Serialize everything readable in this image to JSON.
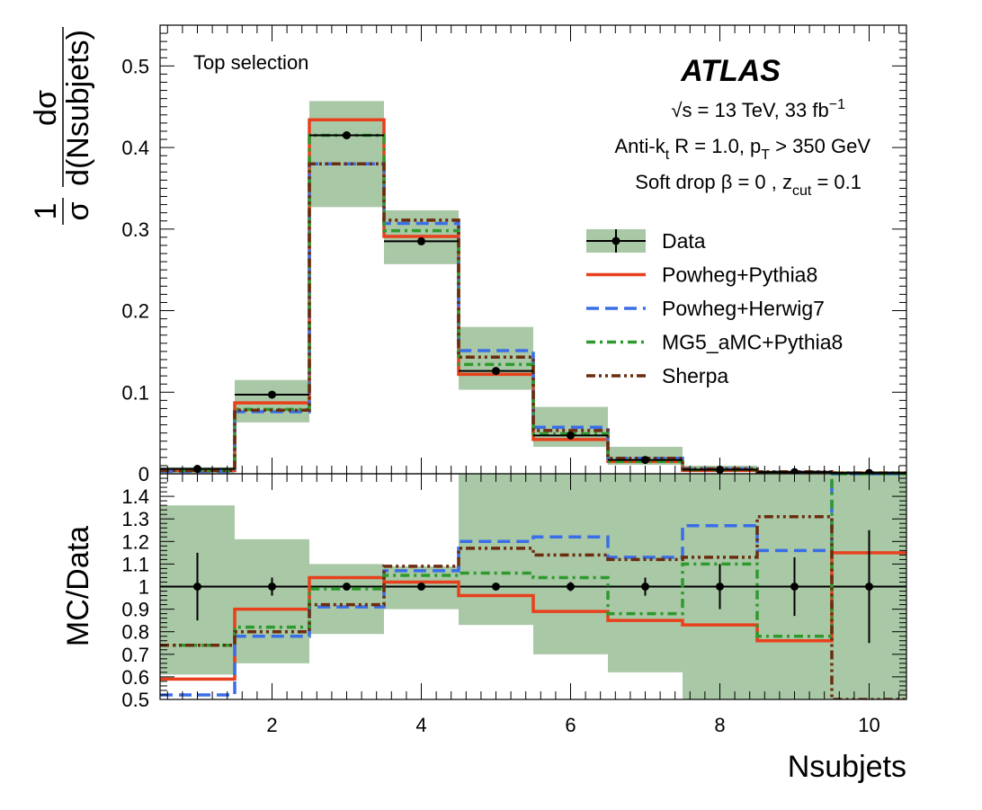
{
  "chart_data": [
    {
      "type": "line",
      "panel": "main",
      "ylabel_fraction": {
        "numerator": "1",
        "denominator": "σ",
        "derivative_num": "dσ",
        "derivative_den": "d(Nsubjets)"
      },
      "ylim": [
        0,
        0.55
      ],
      "yticks": [
        0,
        0.1,
        0.2,
        0.3,
        0.4,
        0.5
      ],
      "y_ticklabels": [
        "0",
        "0.1",
        "0.2",
        "0.3",
        "0.4",
        "0.5"
      ],
      "xlim": [
        0.5,
        10.5
      ],
      "x": [
        1,
        2,
        3,
        4,
        5,
        6,
        7,
        8,
        9,
        10
      ],
      "series": [
        {
          "name": "Data",
          "color": "#000000",
          "style": "points",
          "values": [
            0.006,
            0.097,
            0.415,
            0.285,
            0.126,
            0.047,
            0.017,
            0.005,
            0.002,
            0.001
          ],
          "band_low": [
            0.001,
            0.063,
            0.327,
            0.257,
            0.103,
            0.033,
            0.011,
            0.003,
            0.001,
            0.0
          ],
          "band_high": [
            0.008,
            0.115,
            0.457,
            0.323,
            0.18,
            0.082,
            0.033,
            0.01,
            0.004,
            0.002
          ],
          "band_color": "#a9c8a6"
        },
        {
          "name": "Powheg+Pythia8",
          "color": "#e8401c",
          "style": "solid",
          "values": [
            0.004,
            0.087,
            0.434,
            0.291,
            0.122,
            0.042,
            0.015,
            0.004,
            0.0015,
            0.001
          ]
        },
        {
          "name": "Powheg+Herwig7",
          "color": "#3a6ee8",
          "style": "dashed",
          "values": [
            0.003,
            0.076,
            0.38,
            0.307,
            0.151,
            0.057,
            0.019,
            0.006,
            0.002,
            0.001
          ]
        },
        {
          "name": "MG5_aMC+Pythia8",
          "color": "#2e9a2e",
          "style": "dashdot",
          "values": [
            0.004,
            0.079,
            0.415,
            0.298,
            0.134,
            0.049,
            0.015,
            0.005,
            0.0015,
            0.001
          ]
        },
        {
          "name": "Sherpa",
          "color": "#6b2d0e",
          "style": "dashdotdot",
          "values": [
            0.004,
            0.078,
            0.38,
            0.311,
            0.143,
            0.053,
            0.019,
            0.006,
            0.0025,
            0.001
          ]
        }
      ]
    },
    {
      "type": "line",
      "panel": "ratio",
      "ylabel": "MC/Data",
      "xlabel": "Nsubjets",
      "ylim": [
        0.5,
        1.5
      ],
      "yticks": [
        0.5,
        0.6,
        0.7,
        0.8,
        0.9,
        1.0,
        1.1,
        1.2,
        1.3,
        1.4
      ],
      "y_ticklabels": [
        "0.5",
        "0.6",
        "0.7",
        "0.8",
        "0.9",
        "1",
        "1.1",
        "1.2",
        "1.3",
        "1.4"
      ],
      "xlim": [
        0.5,
        10.5
      ],
      "xticks": [
        2,
        4,
        6,
        8,
        10
      ],
      "x_ticklabels": [
        "2",
        "4",
        "6",
        "8",
        "10"
      ],
      "x": [
        1,
        2,
        3,
        4,
        5,
        6,
        7,
        8,
        9,
        10
      ],
      "series": [
        {
          "name": "Data",
          "color": "#000000",
          "style": "points",
          "values": [
            1,
            1,
            1,
            1,
            1,
            1,
            1,
            1,
            1,
            1
          ],
          "err": [
            0.15,
            0.04,
            0.01,
            0.01,
            0.01,
            0.02,
            0.04,
            0.1,
            0.13,
            0.25
          ],
          "band_low": [
            0.61,
            0.66,
            0.79,
            0.9,
            0.83,
            0.7,
            0.62,
            0.5,
            0.5,
            0.5
          ],
          "band_high": [
            1.36,
            1.21,
            1.1,
            1.09,
            1.62,
            1.74,
            1.7,
            1.83,
            1.83,
            1.83
          ],
          "band_color": "#a9c8a6"
        },
        {
          "name": "Powheg+Pythia8",
          "color": "#e8401c",
          "style": "solid",
          "values": [
            0.59,
            0.9,
            1.04,
            1.02,
            0.96,
            0.89,
            0.85,
            0.83,
            0.76,
            1.15
          ]
        },
        {
          "name": "Powheg+Herwig7",
          "color": "#3a6ee8",
          "style": "dashed",
          "values": [
            0.52,
            0.78,
            0.91,
            1.07,
            1.2,
            1.22,
            1.13,
            1.27,
            1.16,
            1.83
          ]
        },
        {
          "name": "MG5_aMC+Pythia8",
          "color": "#2e9a2e",
          "style": "dashdot",
          "values": [
            0.74,
            0.82,
            0.99,
            1.05,
            1.06,
            1.04,
            0.88,
            1.1,
            0.78,
            1.83
          ]
        },
        {
          "name": "Sherpa",
          "color": "#6b2d0e",
          "style": "dashdotdot",
          "values": [
            0.74,
            0.8,
            0.92,
            1.09,
            1.17,
            1.14,
            1.12,
            1.13,
            1.31,
            0.3
          ]
        }
      ]
    }
  ],
  "annotations": {
    "selection": "Top selection",
    "experiment": "ATLAS",
    "energy_sqrt": "√",
    "energy_rest": "s = 13 TeV, 33 fb",
    "energy_sup": "−1",
    "jet_prefix": "Anti-k",
    "jet_sub": "t",
    "jet_mid": " R = 1.0, p",
    "jet_pt_sub": "T",
    "jet_tail": " > 350 GeV",
    "sd_prefix": "Soft drop β = 0 , z",
    "sd_sub": "cut",
    "sd_tail": " = 0.1"
  }
}
